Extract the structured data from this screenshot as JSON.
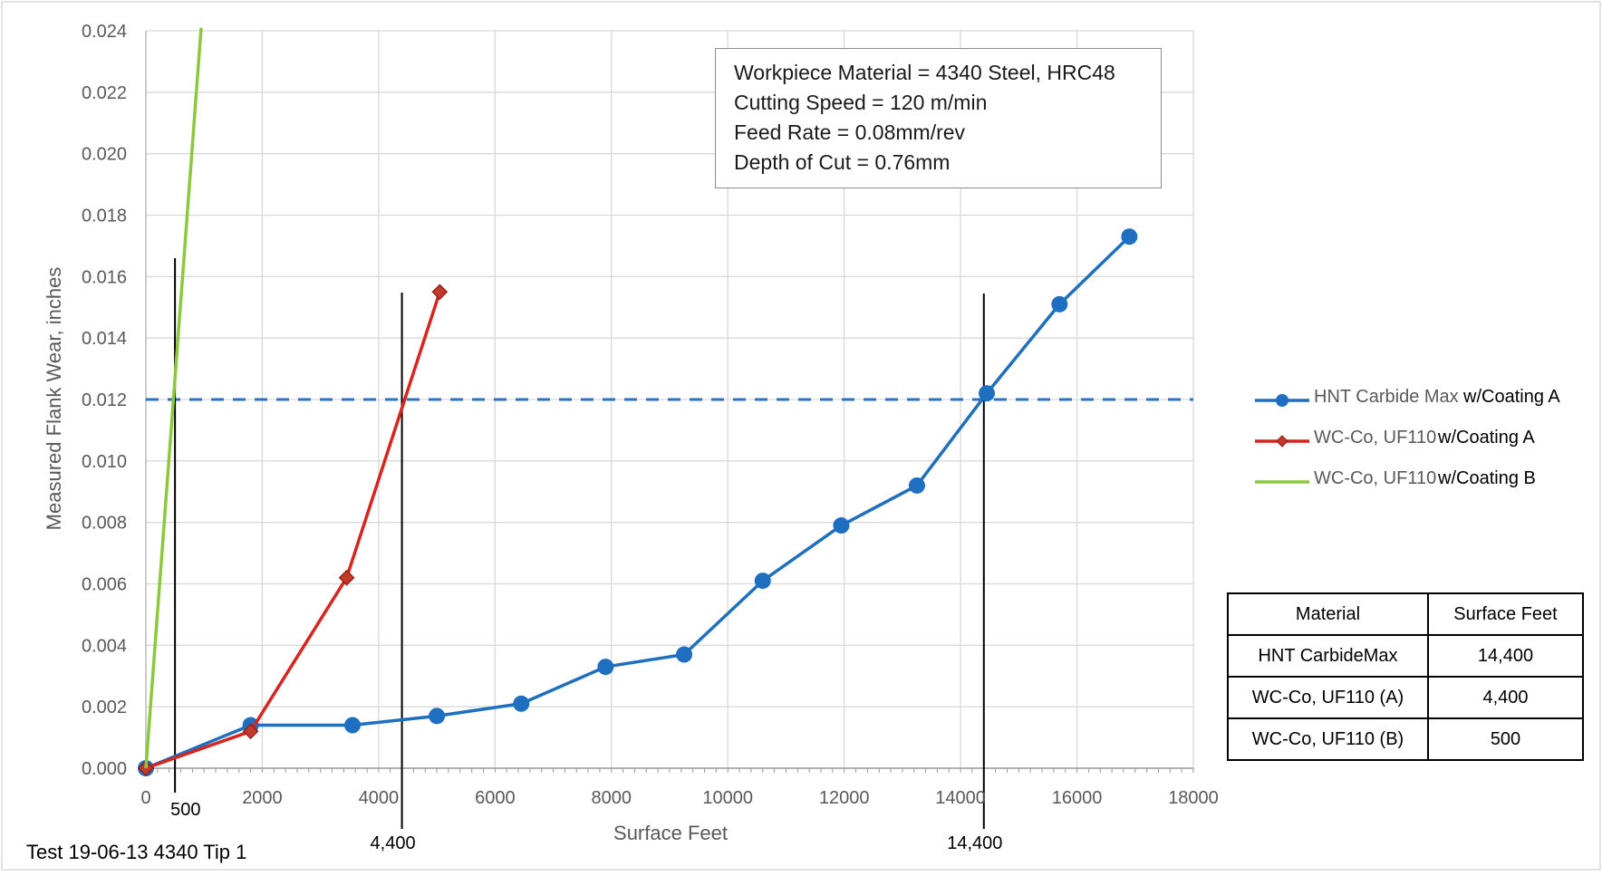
{
  "chart_data": {
    "type": "line",
    "title": "",
    "xlabel": "Surface Feet",
    "ylabel": "Measured Flank Wear, inches",
    "xlim": [
      0,
      18000
    ],
    "ylim": [
      0,
      0.024
    ],
    "x_ticks": [
      "0",
      "2000",
      "4000",
      "6000",
      "8000",
      "10000",
      "12000",
      "14000",
      "16000",
      "18000"
    ],
    "y_ticks": [
      "0.000",
      "0.002",
      "0.004",
      "0.006",
      "0.008",
      "0.010",
      "0.012",
      "0.014",
      "0.016",
      "0.018",
      "0.020",
      "0.022",
      "0.024"
    ],
    "grid": true,
    "legend_position": "right",
    "series": [
      {
        "name": "HNT Carbide Max",
        "legend_suffix": "w/Coating A",
        "color": "#1f6fc0",
        "marker": "circle",
        "x": [
          0,
          1800,
          3550,
          5000,
          6450,
          7900,
          9250,
          10600,
          11950,
          13250,
          14450,
          15700,
          16900
        ],
        "y": [
          0.0,
          0.0014,
          0.0014,
          0.0017,
          0.0021,
          0.0033,
          0.0037,
          0.0061,
          0.0079,
          0.0092,
          0.0122,
          0.0151,
          0.0173
        ]
      },
      {
        "name": "WC-Co, UF110",
        "legend_suffix": "w/Coating A",
        "color": "#d9231d",
        "marker": "diamond",
        "x": [
          0,
          1800,
          3450,
          5050
        ],
        "y": [
          0.0,
          0.0012,
          0.0062,
          0.0155
        ]
      },
      {
        "name": "WC-Co, UF110",
        "legend_suffix": "w/Coating B",
        "color": "#8cc83c",
        "marker": "none",
        "x": [
          0,
          950
        ],
        "y": [
          0.0,
          0.0241
        ]
      }
    ],
    "threshold_line": {
      "y": 0.012,
      "style": "dashed",
      "color": "#2f6fbf"
    },
    "vertical_markers": [
      {
        "x": 500,
        "label": "500"
      },
      {
        "x": 4400,
        "label": "4,400"
      },
      {
        "x": 14400,
        "label": "14,400"
      }
    ]
  },
  "info_box": {
    "lines": [
      "Workpiece Material = 4340 Steel, HRC48",
      "Cutting Speed = 120 m/min",
      "Feed Rate = 0.08mm/rev",
      "Depth of Cut = 0.76mm"
    ]
  },
  "table": {
    "headers": [
      "Material",
      "Surface Feet"
    ],
    "rows": [
      [
        "HNT CarbideMax",
        "14,400"
      ],
      [
        "WC-Co, UF110 (A)",
        "4,400"
      ],
      [
        "WC-Co, UF110 (B)",
        "500"
      ]
    ]
  },
  "footer": {
    "test_label": "Test 19-06-13 4340 Tip 1"
  }
}
